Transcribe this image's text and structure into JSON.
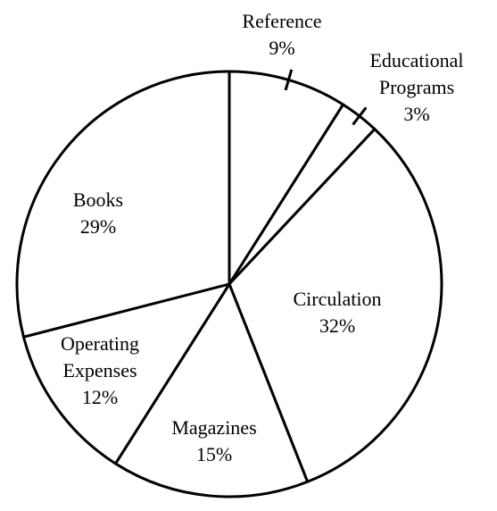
{
  "chart_data": {
    "type": "pie",
    "title": "",
    "categories": [
      "Reference",
      "Educational Programs",
      "Circulation",
      "Magazines",
      "Operating Expenses",
      "Books"
    ],
    "values": [
      9,
      3,
      32,
      15,
      12,
      29
    ],
    "slices": [
      {
        "label_lines": [
          "Reference"
        ],
        "percent_text": "9%"
      },
      {
        "label_lines": [
          "Educational",
          "Programs"
        ],
        "percent_text": "3%"
      },
      {
        "label_lines": [
          "Circulation"
        ],
        "percent_text": "32%"
      },
      {
        "label_lines": [
          "Magazines"
        ],
        "percent_text": "15%"
      },
      {
        "label_lines": [
          "Operating",
          "Expenses"
        ],
        "percent_text": "12%"
      },
      {
        "label_lines": [
          "Books"
        ],
        "percent_text": "29%"
      }
    ],
    "start": "12 o'clock",
    "direction": "clockwise",
    "colors": {
      "fill": "#ffffff",
      "stroke": "#000000"
    }
  }
}
